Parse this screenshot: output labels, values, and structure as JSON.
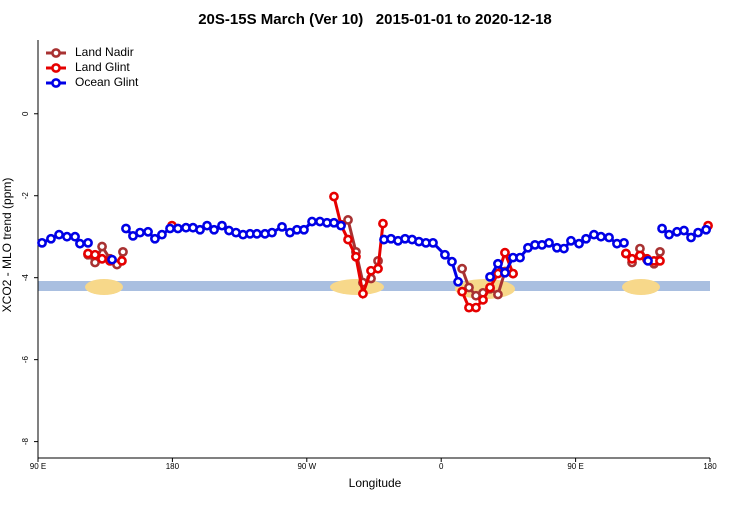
{
  "chart_data": {
    "type": "line",
    "title": "20S-15S March (Ver 10)   2015-01-01 to 2020-12-18",
    "x_label": "Longitude",
    "y_label": "XCO2 - MLO trend (ppm)",
    "xlim": [
      90,
      540
    ],
    "ylim": [
      -8.4,
      1.8
    ],
    "xticks": [
      {
        "value": 90,
        "label": "90 E"
      },
      180,
      {
        "value": 270,
        "label": "90 W"
      },
      {
        "value": 360,
        "label": "0"
      },
      {
        "value": 450,
        "label": "90 E"
      },
      {
        "value": 540,
        "label": "180"
      }
    ],
    "yticks": [
      0,
      -2,
      -4,
      -6,
      -8
    ],
    "legend": "top-left",
    "series": [
      {
        "name": "Land Nadir",
        "color": "#a83232",
        "x": [
          123.5,
          128.2,
          132.9,
          138.2,
          142.9,
          146.9,
          null,
          292.9,
          297.6,
          302.9,
          307.6,
          313.0,
          317.7,
          null,
          374.0,
          378.6,
          383.3,
          388.0,
          392.7,
          398.0,
          402.7,
          408.1,
          null,
          483.7,
          487.8,
          493.1,
          497.8,
          502.5,
          506.5
        ],
        "values": [
          -3.44,
          -3.63,
          -3.24,
          -3.54,
          -3.68,
          -3.37,
          null,
          -2.71,
          -2.59,
          -3.37,
          -4.12,
          -4.02,
          -3.59,
          null,
          -3.78,
          -4.24,
          -4.44,
          -4.37,
          -4.27,
          -4.41,
          -3.85,
          -3.9,
          null,
          -3.41,
          -3.63,
          -3.29,
          -3.56,
          -3.66,
          -3.37
        ]
      },
      {
        "name": "Land Glint",
        "color": "#e60000",
        "x": [
          123.5,
          128.2,
          132.9,
          138.2,
          146.2,
          null,
          179.7,
          null,
          288.2,
          292.9,
          297.6,
          302.9,
          307.6,
          313.0,
          317.7,
          321.0,
          null,
          374.0,
          378.6,
          383.3,
          388.0,
          392.7,
          398.0,
          402.7,
          408.1,
          null,
          483.7,
          487.8,
          493.1,
          497.8,
          502.5,
          506.5,
          null,
          538.7
        ],
        "values": [
          -3.41,
          -3.44,
          -3.54,
          -3.59,
          -3.59,
          null,
          -2.73,
          null,
          -2.02,
          -2.71,
          -3.07,
          -3.49,
          -4.39,
          -3.83,
          -3.78,
          -2.68,
          null,
          -4.34,
          -4.73,
          -4.73,
          -4.54,
          -4.24,
          -3.9,
          -3.39,
          -3.9,
          null,
          -3.41,
          -3.54,
          -3.46,
          -3.54,
          -3.59,
          -3.59,
          null,
          -2.73
        ]
      },
      {
        "name": "Ocean Glint",
        "color": "#0000e6",
        "x": [
          92.7,
          98.7,
          104.1,
          109.4,
          114.8,
          118.1,
          123.5,
          null,
          139.6,
          null,
          148.9,
          153.6,
          158.3,
          163.7,
          168.3,
          173.0,
          178.4,
          183.7,
          189.1,
          193.8,
          198.5,
          203.2,
          207.9,
          213.2,
          217.9,
          222.6,
          227.3,
          232.0,
          236.6,
          242.0,
          246.7,
          253.4,
          258.7,
          263.4,
          268.1,
          273.5,
          278.8,
          283.5,
          288.2,
          292.9,
          null,
          321.7,
          326.4,
          331.1,
          335.8,
          340.5,
          345.1,
          349.8,
          354.5,
          362.5,
          367.2,
          371.3,
          null,
          392.7,
          398.0,
          402.7,
          408.1,
          412.8,
          418.1,
          422.8,
          427.5,
          432.2,
          437.5,
          442.2,
          446.9,
          452.3,
          457.0,
          462.3,
          467.0,
          472.4,
          477.7,
          482.4,
          null,
          498.5,
          null,
          507.9,
          512.6,
          517.9,
          522.6,
          527.3,
          532.0,
          537.4
        ],
        "values": [
          -3.15,
          -3.05,
          -2.95,
          -3.0,
          -3.0,
          -3.17,
          -3.15,
          null,
          -3.56,
          null,
          -2.8,
          -2.98,
          -2.9,
          -2.88,
          -3.05,
          -2.95,
          -2.8,
          -2.8,
          -2.78,
          -2.78,
          -2.83,
          -2.73,
          -2.83,
          -2.73,
          -2.85,
          -2.9,
          -2.95,
          -2.93,
          -2.93,
          -2.93,
          -2.9,
          -2.76,
          -2.9,
          -2.83,
          -2.83,
          -2.63,
          -2.63,
          -2.66,
          -2.66,
          -2.73,
          null,
          -3.07,
          -3.05,
          -3.1,
          -3.05,
          -3.07,
          -3.12,
          -3.15,
          -3.15,
          -3.44,
          -3.61,
          -4.1,
          null,
          -3.98,
          -3.66,
          -3.88,
          -3.51,
          -3.51,
          -3.27,
          -3.2,
          -3.2,
          -3.15,
          -3.27,
          -3.29,
          -3.1,
          -3.17,
          -3.05,
          -2.95,
          -3.0,
          -3.02,
          -3.17,
          -3.15,
          null,
          -3.59,
          null,
          -2.8,
          -2.95,
          -2.88,
          -2.85,
          -3.02,
          -2.9,
          -2.83
        ]
      }
    ]
  }
}
